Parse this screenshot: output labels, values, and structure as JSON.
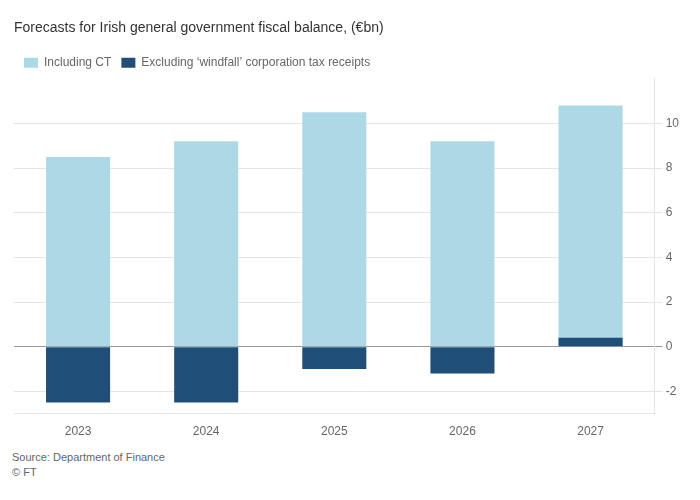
{
  "chart_data": {
    "type": "bar",
    "title": "Forecasts for Irish general government fiscal balance, (€bn)",
    "categories": [
      "2023",
      "2024",
      "2025",
      "2026",
      "2027"
    ],
    "series": [
      {
        "name": "Including CT",
        "color": "#ADD8E6",
        "values": [
          8.5,
          9.2,
          10.5,
          9.2,
          10.8
        ]
      },
      {
        "name": "Excluding ‘windfall’ corporation tax receipts",
        "color": "#1F4E79",
        "values": [
          -2.5,
          -2.5,
          -1.0,
          -1.2,
          0.4
        ]
      }
    ],
    "ylim": [
      -3,
      12
    ],
    "yticks": [
      -2,
      0,
      2,
      4,
      6,
      8,
      10
    ],
    "grid": true,
    "legend": "upper left",
    "annotations": [
      "Source: Department of Finance",
      "© FT"
    ]
  }
}
